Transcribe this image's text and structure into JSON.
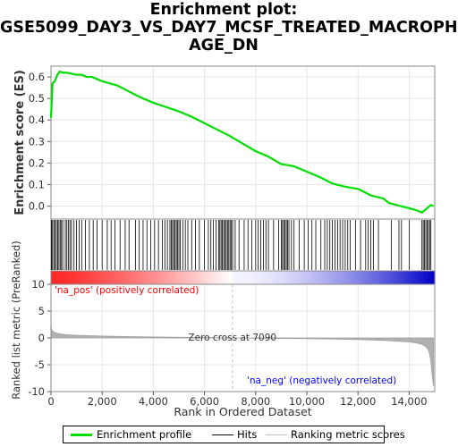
{
  "title_lines": [
    "Enrichment plot:",
    "GSE5099_DAY3_VS_DAY7_MCSF_TREATED_MACROPH",
    "AGE_DN"
  ],
  "colors": {
    "es_line": "#00dd00",
    "hits": "#000000",
    "ranked_fill": "#b0b0b0",
    "pos_label": "#ff0000",
    "neg_label": "#0000ff",
    "zero_cross_line": "#c0c0c0"
  },
  "chart_data": [
    {
      "type": "line",
      "name": "enrichment-profile",
      "ylabel": "Enrichment score (ES)",
      "xlim": [
        0,
        15000
      ],
      "ylim": [
        -0.06,
        0.65
      ],
      "yticks": [
        0.0,
        0.1,
        0.2,
        0.3,
        0.4,
        0.5,
        0.6
      ],
      "ytick_labels": [
        "0.0",
        "0.1",
        "0.2",
        "0.3",
        "0.4",
        "0.5",
        "0.6"
      ],
      "grid": true,
      "x": [
        0,
        60,
        150,
        250,
        350,
        450,
        600,
        800,
        1000,
        1200,
        1400,
        1600,
        1800,
        2000,
        2300,
        2600,
        3000,
        3500,
        4000,
        4500,
        5000,
        5500,
        6000,
        6500,
        7000,
        7500,
        8000,
        8500,
        9000,
        9500,
        10000,
        10500,
        11000,
        11500,
        12000,
        12500,
        13000,
        13200,
        13500,
        14000,
        14300,
        14500,
        14700,
        14850,
        14950
      ],
      "y": [
        0.41,
        0.57,
        0.58,
        0.61,
        0.625,
        0.62,
        0.62,
        0.615,
        0.61,
        0.61,
        0.6,
        0.6,
        0.59,
        0.58,
        0.57,
        0.56,
        0.535,
        0.505,
        0.48,
        0.46,
        0.44,
        0.415,
        0.385,
        0.355,
        0.325,
        0.29,
        0.255,
        0.23,
        0.195,
        0.185,
        0.16,
        0.135,
        0.105,
        0.09,
        0.08,
        0.05,
        0.035,
        0.015,
        0.005,
        -0.01,
        -0.02,
        -0.03,
        -0.01,
        0.005,
        0.0
      ]
    },
    {
      "type": "scatter",
      "name": "hits",
      "hits_x": [
        20,
        60,
        110,
        160,
        210,
        260,
        310,
        360,
        410,
        460,
        560,
        620,
        680,
        740,
        800,
        900,
        1000,
        1100,
        1200,
        1350,
        1500,
        1650,
        1800,
        2000,
        2200,
        2350,
        2500,
        2700,
        2900,
        3050,
        3300,
        3450,
        3600,
        3750,
        3900,
        4050,
        4200,
        4350,
        4450,
        4550,
        4650,
        4700,
        4750,
        4800,
        4850,
        4900,
        4950,
        5000,
        5050,
        5150,
        5250,
        5350,
        5500,
        5650,
        5800,
        6000,
        6150,
        6250,
        6350,
        6450,
        6550,
        6600,
        6650,
        6700,
        6750,
        6800,
        6850,
        6900,
        6950,
        7000,
        7050,
        7100,
        7200,
        7350,
        7550,
        7700,
        7850,
        8000,
        8100,
        8200,
        8300,
        8400,
        8500,
        8700,
        8900,
        9000,
        9050,
        9100,
        9150,
        9200,
        9250,
        9300,
        9400,
        9500,
        9700,
        9900,
        10050,
        10200,
        10350,
        10550,
        10700,
        10800,
        10900,
        11000,
        11100,
        11200,
        11300,
        11400,
        11500,
        11600,
        11700,
        11900,
        12100,
        12300,
        12400,
        12500,
        12600,
        12800,
        13300,
        13600,
        13700,
        14000,
        14500,
        14550,
        14600,
        14650,
        14700,
        14750,
        14800,
        14850
      ]
    },
    {
      "type": "area",
      "name": "ranked-list-metric",
      "ylabel": "Ranked list metric (PreRanked)",
      "xlabel": "Rank in Ordered Dataset",
      "xlim": [
        0,
        15000
      ],
      "ylim": [
        -10,
        10
      ],
      "xticks": [
        0,
        2000,
        4000,
        6000,
        8000,
        10000,
        12000,
        14000
      ],
      "xtick_labels": [
        "0",
        "2,000",
        "4,000",
        "6,000",
        "8,000",
        "10,000",
        "12,000",
        "14,000"
      ],
      "yticks": [
        10,
        5,
        0,
        -5,
        -10
      ],
      "ytick_labels": [
        "10",
        "5",
        "0",
        "-5",
        "-10"
      ],
      "x": [
        0,
        20,
        60,
        150,
        300,
        600,
        1000,
        2000,
        3000,
        4000,
        5000,
        6000,
        7000,
        7090,
        8000,
        9000,
        10000,
        11000,
        12000,
        13000,
        13500,
        14000,
        14300,
        14500,
        14650,
        14750,
        14800,
        14850,
        14900,
        14950
      ],
      "values": [
        2.5,
        1.6,
        1.3,
        1.0,
        0.8,
        0.6,
        0.5,
        0.35,
        0.25,
        0.18,
        0.12,
        0.07,
        0.02,
        0.0,
        -0.05,
        -0.1,
        -0.15,
        -0.2,
        -0.3,
        -0.45,
        -0.6,
        -0.75,
        -0.95,
        -1.2,
        -1.6,
        -2.2,
        -3.0,
        -4.5,
        -7.0,
        -9.0
      ],
      "zero_cross": 7090,
      "annotations": {
        "zero_cross": "Zero cross at 7090",
        "pos": "'na_pos' (positively correlated)",
        "neg": "'na_neg' (negatively correlated)"
      }
    }
  ],
  "legend": {
    "items": [
      {
        "label": "Enrichment profile",
        "color": "#00dd00"
      },
      {
        "label": "Hits",
        "color": "#000000"
      },
      {
        "label": "Ranking metric scores",
        "color": "#c0c0c0"
      }
    ]
  }
}
